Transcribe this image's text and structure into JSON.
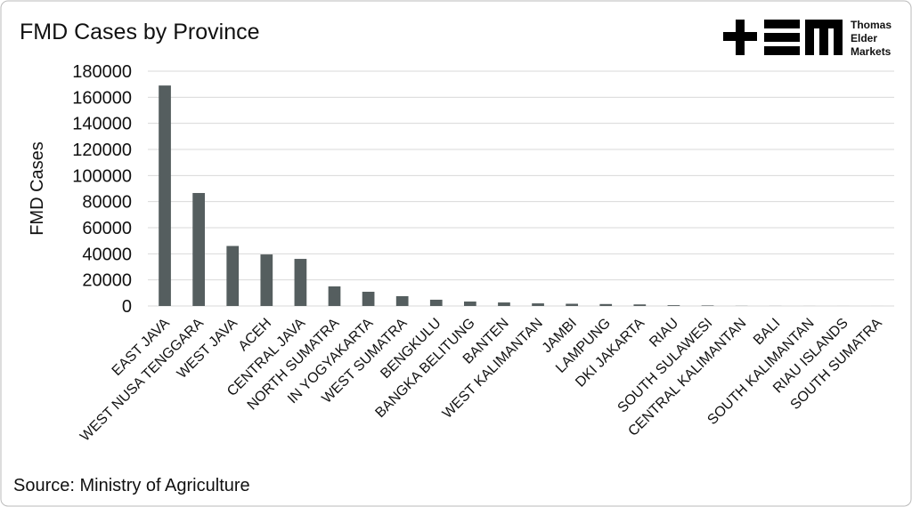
{
  "chart_data": {
    "type": "bar",
    "title": "FMD Cases by Province",
    "y_label": "FMD Cases",
    "source": "Source: Ministry of Agriculture",
    "categories": [
      "EAST JAVA",
      "WEST NUSA TENGGARA",
      "WEST JAVA",
      "ACEH",
      "CENTRAL JAVA",
      "NORTH SUMATRA",
      "IN YOGYAKARTA",
      "WEST SUMATRA",
      "BENGKULU",
      "BANGKA BELITUNG",
      "BANTEN",
      "WEST KALIMANTAN",
      "JAMBI",
      "LAMPUNG",
      "DKI JAKARTA",
      "RIAU",
      "SOUTH SULAWESI",
      "CENTRAL KALIMANTAN",
      "BALI",
      "SOUTH KALIMANTAN",
      "RIAU ISLANDS",
      "SOUTH SUMATRA"
    ],
    "values": [
      169000,
      86600,
      46000,
      39500,
      36100,
      15000,
      10900,
      7500,
      4800,
      3400,
      2700,
      2000,
      1700,
      1500,
      1200,
      600,
      400,
      100,
      50,
      30,
      20,
      10
    ],
    "color": "#555e5f",
    "ylim": [
      0,
      180000
    ],
    "yticks": [
      0,
      20000,
      40000,
      60000,
      80000,
      100000,
      120000,
      140000,
      160000,
      180000
    ],
    "grid": true
  },
  "brand": [
    "Thomas",
    "Elder",
    "Markets"
  ]
}
